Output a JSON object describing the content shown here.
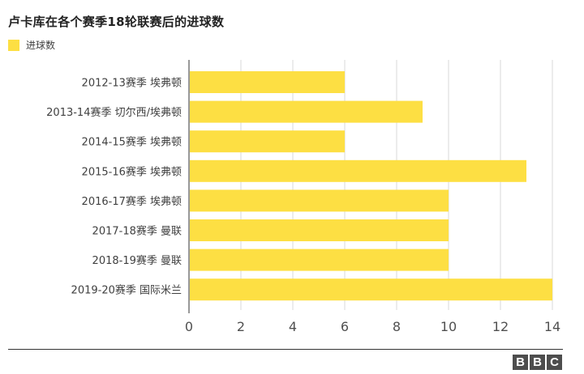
{
  "chart_data": {
    "type": "bar",
    "orientation": "horizontal",
    "title": "卢卡库在各个赛季18轮联赛后的进球数",
    "legend": {
      "label": "进球数",
      "color": "#fddf43",
      "placement": "top-left"
    },
    "categories": [
      "2012-13赛季 埃弗顿",
      "2013-14赛季 切尔西/埃弗顿",
      "2014-15赛季 埃弗顿",
      "2015-16赛季 埃弗顿",
      "2016-17赛季 埃弗顿",
      "2017-18赛季 曼联",
      "2018-19赛季 曼联",
      "2019-20赛季 国际米兰"
    ],
    "values": [
      6,
      9,
      6,
      13,
      10,
      10,
      10,
      14
    ],
    "xlim": [
      0,
      14
    ],
    "xticks": [
      "0",
      "2",
      "4",
      "6",
      "8",
      "10",
      "12",
      "14"
    ],
    "grid": "vertical",
    "bar_color": "#fddf43"
  },
  "branding": {
    "logo": "BBC",
    "letters": [
      "B",
      "B",
      "C"
    ]
  }
}
